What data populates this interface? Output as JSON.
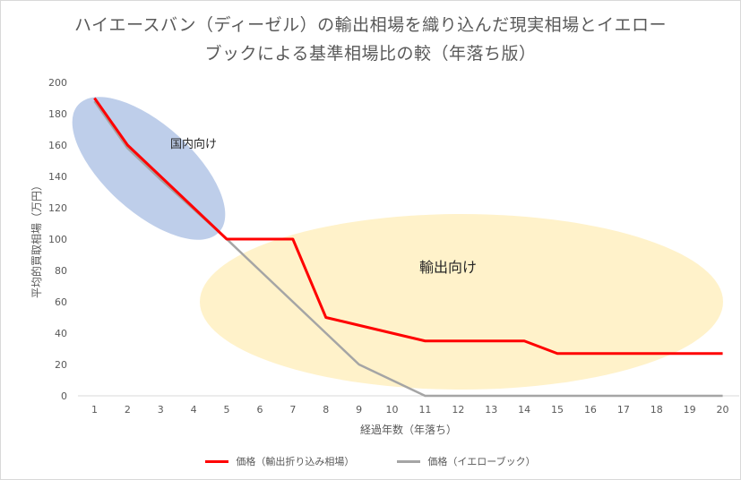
{
  "chart_data": {
    "type": "line",
    "title_line1": "ハイエースバン（ディーゼル）の輸出相場を織り込んだ現実相場とイエロー",
    "title_line2": "ブックによる基準相場比の較（年落ち版）",
    "xlabel": "経過年数（年落ち）",
    "ylabel": "平均的買取相場（万円）",
    "x": [
      1,
      2,
      3,
      4,
      5,
      6,
      7,
      8,
      9,
      10,
      11,
      12,
      13,
      14,
      15,
      16,
      17,
      18,
      19,
      20
    ],
    "ylim": [
      0,
      200
    ],
    "yticks": [
      0,
      20,
      40,
      60,
      80,
      100,
      120,
      140,
      160,
      180,
      200
    ],
    "series": [
      {
        "name": "価格（輸出折り込み相場）",
        "color": "#ff0000",
        "values": [
          190,
          160,
          140,
          120,
          100,
          100,
          100,
          50,
          45,
          40,
          35,
          35,
          35,
          35,
          27,
          27,
          27,
          27,
          27,
          27
        ]
      },
      {
        "name": "価格（イエローブック）",
        "color": "#a5a5a5",
        "values": [
          188,
          158,
          138,
          119,
          100,
          80,
          60,
          40,
          20,
          10,
          0,
          0,
          0,
          0,
          0,
          0,
          0,
          0,
          0,
          0
        ]
      }
    ],
    "annotations": [
      {
        "text": "国内向け",
        "color": "#4472c4"
      },
      {
        "text": "輸出向け",
        "color": "#ffd966"
      }
    ],
    "grid": false,
    "legend_position": "bottom"
  }
}
